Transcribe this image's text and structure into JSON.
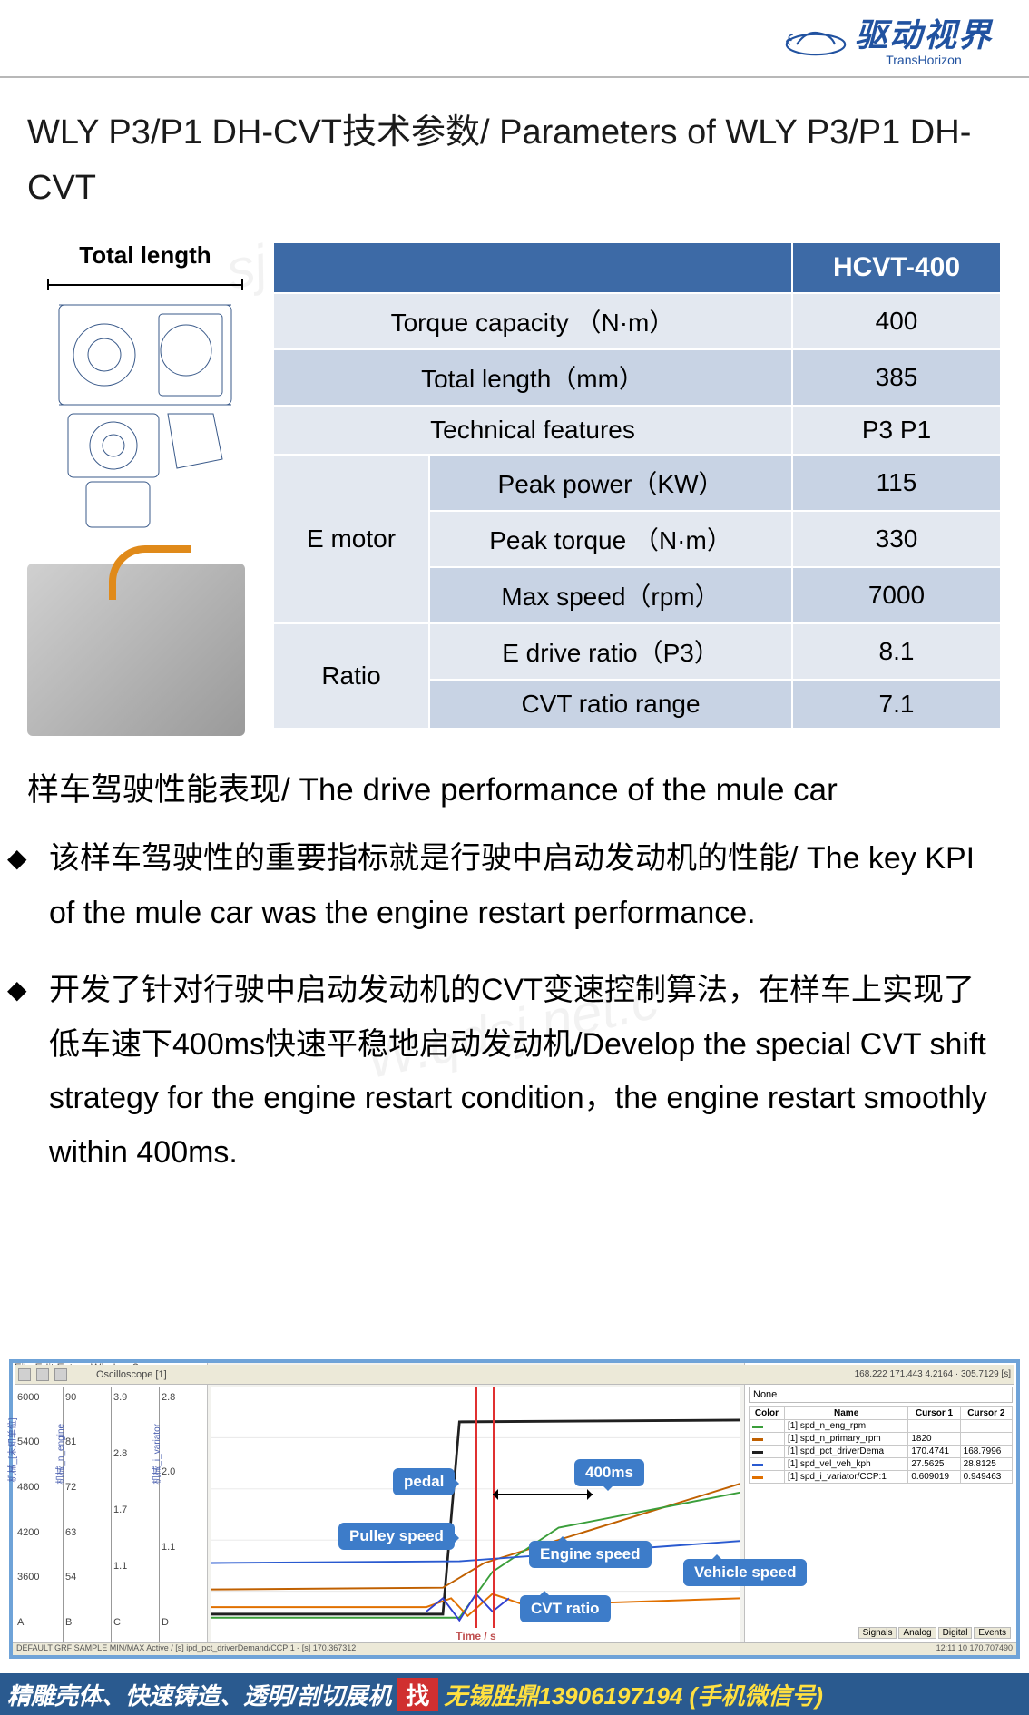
{
  "brand": {
    "cn": "驱动视界",
    "en": "TransHorizon"
  },
  "title": "WLY P3/P1 DH-CVT技术参数/ Parameters of WLY P3/P1 DH-CVT",
  "figure": {
    "total_length_label": "Total length"
  },
  "table": {
    "header_model": "HCVT-400",
    "rows": {
      "torque_cap": {
        "label": "Torque capacity （N·m）",
        "value": "400"
      },
      "total_len": {
        "label": "Total length（mm）",
        "value": "385"
      },
      "tech_feat": {
        "label": "Technical features",
        "value": "P3 P1"
      },
      "emotor_group": "E motor",
      "peak_power": {
        "label": "Peak power（KW）",
        "value": "115"
      },
      "peak_torque": {
        "label": "Peak torque （N·m）",
        "value": "330"
      },
      "max_speed": {
        "label": "Max speed（rpm）",
        "value": "7000"
      },
      "ratio_group": "Ratio",
      "e_drive": {
        "label": "E drive ratio（P3）",
        "value": "8.1"
      },
      "cvt_range": {
        "label": "CVT ratio range",
        "value": "7.1"
      }
    },
    "colors": {
      "header_bg": "#3d6aa6",
      "header_fg": "#ffffff",
      "row_odd": "#e3e8f0",
      "row_even": "#c8d3e4",
      "border": "#ffffff"
    }
  },
  "subtitle": "样车驾驶性能表现/ The drive performance of the mule car",
  "bullets": [
    "该样车驾驶性的重要指标就是行驶中启动发动机的性能/ The key KPI of the mule car was the engine restart performance.",
    "开发了针对行驶中启动发动机的CVT变速控制算法，在样车上实现了低车速下400ms快速平稳地启动发动机/Develop the special CVT shift strategy for the engine restart condition，the engine restart smoothly within 400ms."
  ],
  "chart": {
    "menu": "File  Edit  Extras  Window  ?",
    "toolbar_text": "Oscilloscope [1]",
    "x_label": "Time / s",
    "x_range_text": "168.222        171.443   4.2164 · 305.7129 [s]",
    "right_header": "None",
    "callouts": {
      "pedal": "pedal",
      "pulley": "Pulley speed",
      "ms400": "400ms",
      "engine": "Engine speed",
      "cvt": "CVT ratio",
      "vehicle": "Vehicle speed"
    },
    "y_axes": [
      {
        "label": "机械_[未知单位]",
        "ticks": [
          "6000",
          "5400",
          "4800",
          "4200",
          "3600",
          "A"
        ]
      },
      {
        "label": "机械_n_engine",
        "ticks": [
          "90",
          "81",
          "72",
          "63",
          "54",
          "B"
        ]
      },
      {
        "label": "",
        "ticks": [
          "3.9",
          "2.8",
          "1.7",
          "1.1",
          "C"
        ]
      },
      {
        "label": "机械_i_variator",
        "ticks": [
          "2.8",
          "2.0",
          "1.1",
          "D"
        ]
      }
    ],
    "series": [
      {
        "name": "spd_n_eng_rpm",
        "color": "#3a9e3a",
        "c1": "",
        "c2": ""
      },
      {
        "name": "spd_n_primary_rpm",
        "color": "#c06000",
        "c1": "1820",
        "c2": ""
      },
      {
        "name": "spd_pct_driverDema",
        "color": "#202020",
        "c1": "170.4741",
        "c2": "168.7996"
      },
      {
        "name": "spd_vel_veh_kph",
        "color": "#2a5ad0",
        "c1": "27.5625",
        "c2": "28.8125"
      },
      {
        "name": "spd_i_variator/CCP:1",
        "color": "#e07000",
        "c1": "0.609019",
        "c2": "0.949463"
      }
    ],
    "legend_cols": [
      "Color",
      "Name",
      "Cursor 1",
      "Cursor 2"
    ],
    "tabs": [
      "Signals",
      "Analog",
      "Digital",
      "Events"
    ],
    "status_left": "DEFAULT GRF    SAMPLE        MIN/MAX    Active   / [s]  ipd_pct_driverDemand/CCP:1  -  [s]  170.367312",
    "status_right": "12:11  10   170.707490"
  },
  "footer": {
    "left": "精雕壳体、快速铸造、透明/剖切展机",
    "find": "找",
    "right": "无锡胜鼎13906197194 (手机微信号)"
  },
  "watermarks": {
    "w1": "sj",
    "w2": "W.qdsj.net.c",
    "w3": ".cn"
  }
}
